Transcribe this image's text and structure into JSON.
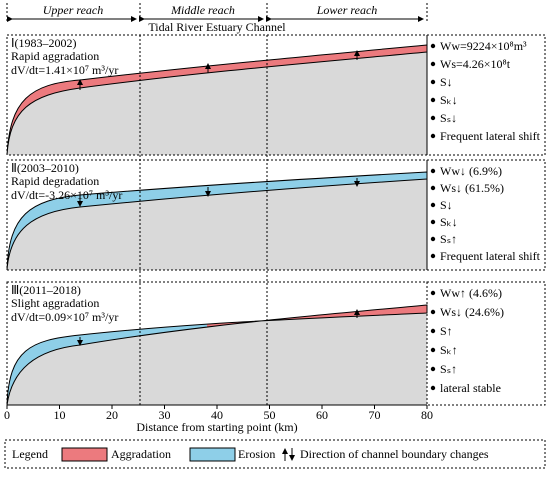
{
  "header": {
    "reaches": [
      "Upper reach",
      "Middle reach",
      "Lower reach"
    ],
    "channel": "Tidal River Estuary Channel"
  },
  "panels": [
    {
      "period": "Ⅰ(1983–2002)",
      "trend": "Rapid aggradation",
      "rate": "dV/dt=1.41×10⁷ m³/yr",
      "notes": [
        "Ww=9224×10⁸m³",
        "Ws=4.26×10⁸t",
        "S↓",
        "Sₖ↓",
        "Sₛ↓",
        "Frequent lateral shift"
      ]
    },
    {
      "period": "Ⅱ(2003–2010)",
      "trend": "Rapid degradation",
      "rate": "dV/dt=-3.26×10⁷ m³/yr",
      "notes": [
        "Ww↓ (6.9%)",
        "Ws↓ (61.5%)",
        "S↓",
        "Sₖ↓",
        "Sₛ↑",
        "Frequent lateral shift"
      ]
    },
    {
      "period": "Ⅲ(2011–2018)",
      "trend": "Slight aggradation",
      "rate": "dV/dt=0.09×10⁷ m³/yr",
      "notes": [
        "Ww↑ (4.6%)",
        "Ws↓ (24.6%)",
        "S↑",
        "Sₖ↑",
        "Sₛ↑",
        "lateral stable"
      ]
    }
  ],
  "axis": {
    "ticks": [
      "0",
      "10",
      "20",
      "30",
      "40",
      "50",
      "60",
      "70",
      "80"
    ],
    "label": "Distance from starting point (km)"
  },
  "legend": {
    "title": "Legend",
    "items": [
      "Aggradation",
      "Erosion",
      "Direction of channel boundary changes"
    ]
  }
}
